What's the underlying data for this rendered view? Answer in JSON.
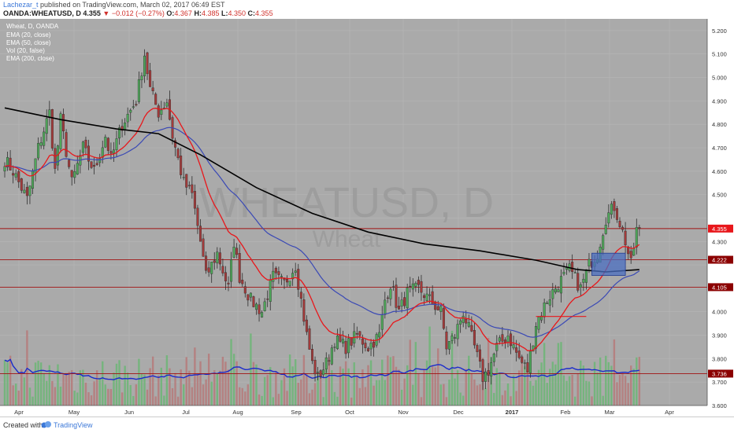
{
  "header": {
    "author": "Lachezar_t",
    "published_text": "published on TradingView.com, March 02, 2017 06:49 EST",
    "symbol": "OANDA:WHEATUSD, D",
    "last": "4.355",
    "change": "−0.012 (−0.27%)",
    "o_label": "O:",
    "o": "4.367",
    "h_label": "H:",
    "h": "4.385",
    "l_label": "L:",
    "l": "4.350",
    "c_label": "C:",
    "c": "4.355"
  },
  "legend": {
    "title": "Wheat, D, OANDA",
    "items": [
      "EMA (20, close)",
      "EMA (50, close)",
      "Vol (20, false)",
      "EMA (200, close)"
    ]
  },
  "watermark": {
    "symbol": "WHEATUSD, D",
    "name": "Wheat"
  },
  "footer": {
    "created_with": "Created with",
    "brand": "TradingView"
  },
  "colors": {
    "background": "#aaaaaa",
    "bull": "#4fa85a",
    "bear": "#a33a3a",
    "ema20": "#e8171b",
    "ema50": "#3a49b5",
    "ema200": "#000000",
    "vol_ma": "#1a2bcc",
    "level_line": "#a01010",
    "zone": "#4a6ec0"
  },
  "chart_data": {
    "type": "candlestick",
    "symbol": "OANDA:WHEATUSD",
    "timeframe": "D",
    "ylim": [
      3.6,
      5.25
    ],
    "y_ticks": [
      "5.200",
      "5.100",
      "5.000",
      "4.900",
      "4.800",
      "4.700",
      "4.600",
      "4.500",
      "4.300",
      "4.000",
      "3.900",
      "3.800",
      "3.700",
      "3.600"
    ],
    "x_ticks": [
      "Apr",
      "May",
      "Jun",
      "Jul",
      "Aug",
      "Sep",
      "Oct",
      "Nov",
      "Dec",
      "2017",
      "Feb",
      "Mar",
      "Apr"
    ],
    "x_ticks_bold": [
      "2017"
    ],
    "price_labels": [
      {
        "value": 4.355,
        "label": "4.355",
        "color": "#e8171b"
      },
      {
        "value": 4.222,
        "label": "4.222",
        "color": "#8b0000"
      },
      {
        "value": 4.105,
        "label": "4.105",
        "color": "#8b0000"
      },
      {
        "value": 3.736,
        "label": "3.736",
        "color": "#8b0000"
      }
    ],
    "horizontal_levels": [
      4.355,
      4.222,
      4.105,
      3.736
    ],
    "anchors_close": [
      [
        0,
        4.65
      ],
      [
        3,
        4.6
      ],
      [
        8,
        4.48
      ],
      [
        12,
        4.7
      ],
      [
        16,
        4.85
      ],
      [
        18,
        4.6
      ],
      [
        20,
        4.82
      ],
      [
        24,
        4.55
      ],
      [
        28,
        4.7
      ],
      [
        32,
        4.6
      ],
      [
        36,
        4.75
      ],
      [
        38,
        4.65
      ],
      [
        42,
        4.8
      ],
      [
        47,
        4.9
      ],
      [
        50,
        5.1
      ],
      [
        52,
        4.95
      ],
      [
        55,
        4.85
      ],
      [
        58,
        4.9
      ],
      [
        60,
        4.75
      ],
      [
        64,
        4.55
      ],
      [
        67,
        4.5
      ],
      [
        70,
        4.3
      ],
      [
        72,
        4.15
      ],
      [
        76,
        4.25
      ],
      [
        80,
        4.1
      ],
      [
        82,
        4.3
      ],
      [
        84,
        4.15
      ],
      [
        88,
        4.05
      ],
      [
        92,
        4.0
      ],
      [
        96,
        4.15
      ],
      [
        100,
        4.12
      ],
      [
        104,
        4.2
      ],
      [
        106,
        4.05
      ],
      [
        108,
        3.9
      ],
      [
        110,
        3.78
      ],
      [
        112,
        3.72
      ],
      [
        115,
        3.78
      ],
      [
        118,
        3.88
      ],
      [
        122,
        3.85
      ],
      [
        126,
        3.9
      ],
      [
        130,
        3.85
      ],
      [
        134,
        3.9
      ],
      [
        136,
        4.05
      ],
      [
        138,
        4.12
      ],
      [
        141,
        4.0
      ],
      [
        144,
        4.08
      ],
      [
        148,
        4.1
      ],
      [
        152,
        4.05
      ],
      [
        156,
        4.0
      ],
      [
        158,
        3.85
      ],
      [
        161,
        3.9
      ],
      [
        164,
        4.0
      ],
      [
        168,
        3.85
      ],
      [
        171,
        3.72
      ],
      [
        173,
        3.75
      ],
      [
        176,
        3.85
      ],
      [
        180,
        3.9
      ],
      [
        184,
        3.8
      ],
      [
        187,
        3.75
      ],
      [
        190,
        3.95
      ],
      [
        194,
        4.05
      ],
      [
        198,
        4.12
      ],
      [
        202,
        4.18
      ],
      [
        206,
        4.1
      ],
      [
        209,
        4.2
      ],
      [
        212,
        4.25
      ],
      [
        215,
        4.4
      ],
      [
        218,
        4.45
      ],
      [
        220,
        4.38
      ],
      [
        222,
        4.3
      ],
      [
        224,
        4.2
      ],
      [
        226,
        4.35
      ],
      [
        227,
        4.355
      ]
    ],
    "ema200_path": [
      [
        0,
        4.87
      ],
      [
        20,
        4.82
      ],
      [
        40,
        4.78
      ],
      [
        55,
        4.76
      ],
      [
        70,
        4.67
      ],
      [
        90,
        4.53
      ],
      [
        110,
        4.42
      ],
      [
        130,
        4.34
      ],
      [
        150,
        4.29
      ],
      [
        170,
        4.26
      ],
      [
        190,
        4.22
      ],
      [
        205,
        4.18
      ],
      [
        215,
        4.17
      ],
      [
        227,
        4.18
      ]
    ]
  }
}
